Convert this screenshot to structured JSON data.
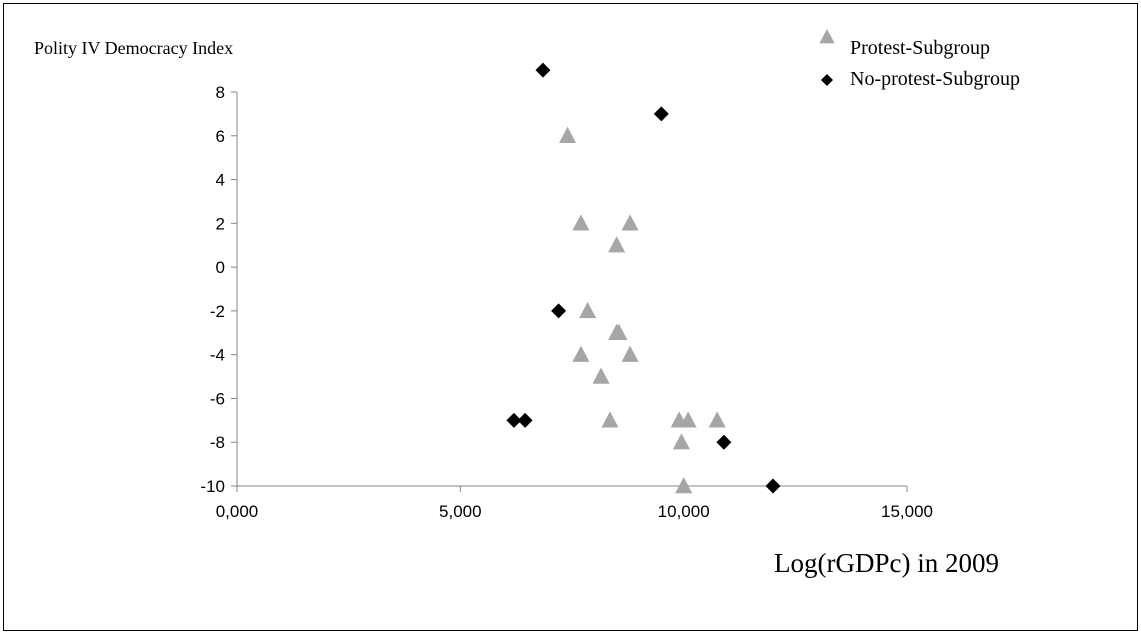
{
  "chart_data": {
    "type": "scatter",
    "title": "",
    "ylabel": "Polity IV Democracy Index",
    "xlabel": "Log(rGDPc) in 2009",
    "xlim": [
      0,
      15
    ],
    "ylim": [
      -10,
      8
    ],
    "xticks": [
      0,
      5,
      10,
      15
    ],
    "xtick_labels": [
      "0,000",
      "5,000",
      "10,000",
      "15,000"
    ],
    "yticks": [
      8,
      6,
      4,
      2,
      0,
      -2,
      -4,
      -6,
      -8,
      -10
    ],
    "ytick_labels": [
      "8",
      "6",
      "4",
      "2",
      "0",
      "-2",
      "-4",
      "-6",
      "-8",
      "-10"
    ],
    "grid": false,
    "legend_position": "top-right",
    "series": [
      {
        "name": "Protest-Subgroup",
        "marker": "triangle",
        "color": "#a6a6a6",
        "points": [
          {
            "x": 7.4,
            "y": 6
          },
          {
            "x": 7.7,
            "y": 2
          },
          {
            "x": 8.8,
            "y": 2
          },
          {
            "x": 8.5,
            "y": 1
          },
          {
            "x": 7.85,
            "y": -2
          },
          {
            "x": 8.5,
            "y": -3
          },
          {
            "x": 8.55,
            "y": -3
          },
          {
            "x": 7.7,
            "y": -4
          },
          {
            "x": 8.8,
            "y": -4
          },
          {
            "x": 8.15,
            "y": -5
          },
          {
            "x": 8.35,
            "y": -7
          },
          {
            "x": 9.9,
            "y": -7
          },
          {
            "x": 10.1,
            "y": -7
          },
          {
            "x": 10.75,
            "y": -7
          },
          {
            "x": 9.95,
            "y": -8
          },
          {
            "x": 10.0,
            "y": -10
          }
        ]
      },
      {
        "name": "No-protest-Subgroup",
        "marker": "diamond",
        "color": "#000000",
        "points": [
          {
            "x": 6.85,
            "y": 9
          },
          {
            "x": 9.5,
            "y": 7
          },
          {
            "x": 7.2,
            "y": -2
          },
          {
            "x": 6.2,
            "y": -7
          },
          {
            "x": 6.45,
            "y": -7
          },
          {
            "x": 10.9,
            "y": -8
          },
          {
            "x": 12.0,
            "y": -10
          }
        ]
      }
    ]
  }
}
